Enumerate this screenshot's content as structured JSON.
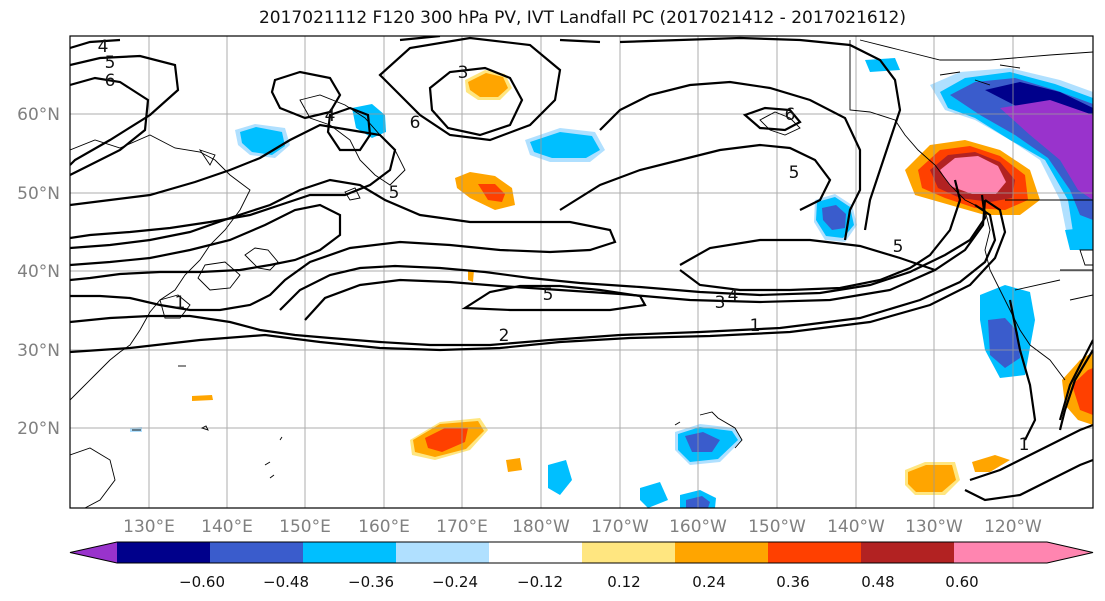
{
  "title": "2017021112 F120 300 hPa PV, IVT Landfall PC (2017021412 - 2017021612)",
  "map": {
    "projection": "PlateCarree",
    "lon_range": [
      120,
      -110
    ],
    "lat_range": [
      10,
      70
    ],
    "lon_ticks": [
      "130°E",
      "140°E",
      "150°E",
      "160°E",
      "170°E",
      "180°W",
      "170°W",
      "160°W",
      "150°W",
      "140°W",
      "130°W",
      "120°W"
    ],
    "lat_ticks": [
      "20°N",
      "30°N",
      "40°N",
      "50°N",
      "60°N"
    ],
    "gridlines": true,
    "tick_color": "#808080"
  },
  "contours": {
    "field": "300 hPa PV",
    "labels": [
      "4",
      "5",
      "6",
      "3",
      "4",
      "5",
      "6",
      "5",
      "6",
      "5",
      "1",
      "5",
      "3",
      "4",
      "2",
      "1",
      "1"
    ]
  },
  "colorbar": {
    "orientation": "horizontal",
    "extend": "both",
    "tick_labels": [
      "−0.60",
      "−0.48",
      "−0.36",
      "−0.24",
      "−0.12",
      "0.12",
      "0.24",
      "0.36",
      "0.48",
      "0.60"
    ],
    "colors": [
      "#9933cc",
      "#00008b",
      "#3a5ccc",
      "#00bfff",
      "#b0e0ff",
      "#ffffff",
      "#ffe680",
      "#ffa500",
      "#ff4000",
      "#b22222",
      "#ff85b0",
      "#ff85b0"
    ]
  }
}
